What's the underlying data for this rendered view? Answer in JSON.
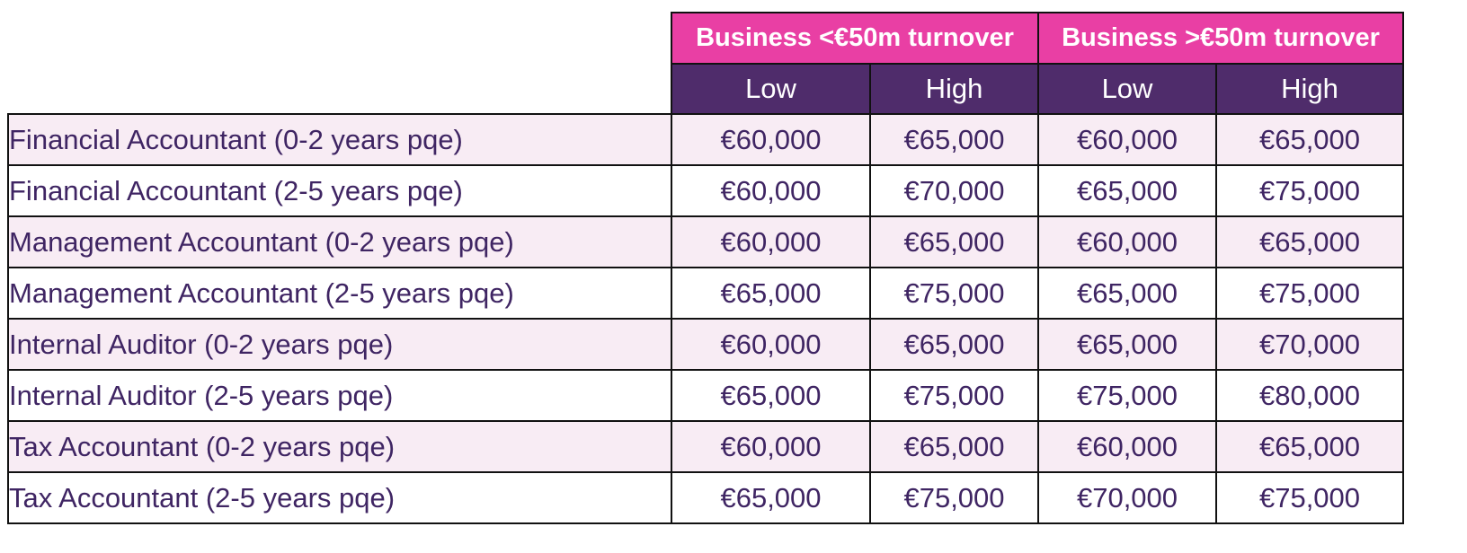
{
  "table": {
    "groups": [
      "Business <€50m turnover",
      "Business >€50m turnover"
    ],
    "subheaders": [
      "Low",
      "High",
      "Low",
      "High"
    ],
    "rows": [
      {
        "role": "Financial Accountant (0-2 years pqe)",
        "values": [
          "€60,000",
          "€65,000",
          "€60,000",
          "€65,000"
        ]
      },
      {
        "role": "Financial Accountant (2-5 years pqe)",
        "values": [
          "€60,000",
          "€70,000",
          "€65,000",
          "€75,000"
        ]
      },
      {
        "role": "Management Accountant (0-2 years pqe)",
        "values": [
          "€60,000",
          "€65,000",
          "€60,000",
          "€65,000"
        ]
      },
      {
        "role": "Management Accountant (2-5 years pqe)",
        "values": [
          "€65,000",
          "€75,000",
          "€65,000",
          "€75,000"
        ]
      },
      {
        "role": "Internal Auditor (0-2 years pqe)",
        "values": [
          "€60,000",
          "€65,000",
          "€65,000",
          "€70,000"
        ]
      },
      {
        "role": "Internal Auditor (2-5 years pqe)",
        "values": [
          "€65,000",
          "€75,000",
          "€75,000",
          "€80,000"
        ]
      },
      {
        "role": "Tax Accountant (0-2 years pqe)",
        "values": [
          "€60,000",
          "€65,000",
          "€60,000",
          "€65,000"
        ]
      },
      {
        "role": "Tax Accountant (2-5 years pqe)",
        "values": [
          "€65,000",
          "€75,000",
          "€70,000",
          "€75,000"
        ]
      }
    ],
    "colors": {
      "group_header_bg": "#e93fa4",
      "sub_header_bg": "#4f2c6b",
      "text": "#3f2563",
      "stripe": "#f8ecf4"
    }
  }
}
